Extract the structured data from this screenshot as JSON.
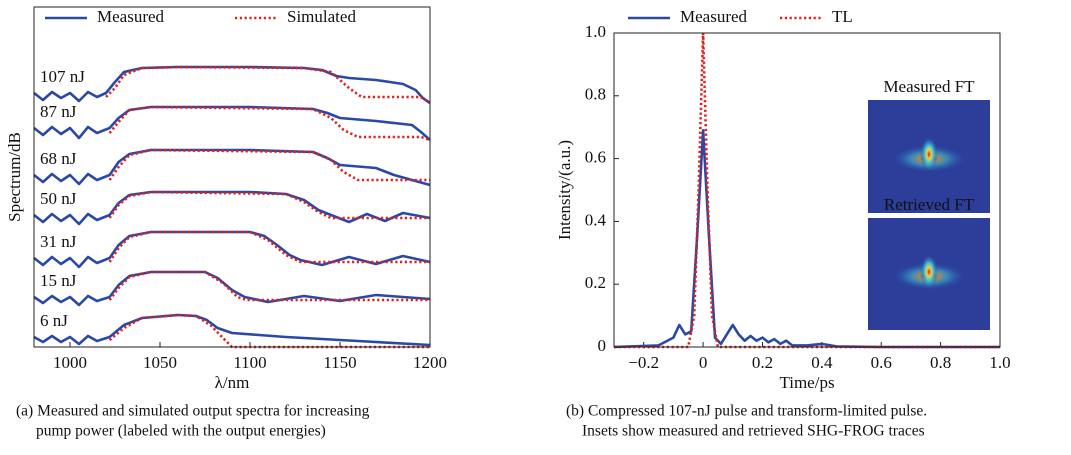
{
  "chart_data": [
    {
      "type": "waterfall",
      "ylabel": "Spectrum/dB",
      "xlabel": "λ/nm",
      "caption": [
        "(a) Measured and simulated output spectra for increasing",
        "pump power (labeled with the output energies)"
      ],
      "xlim": [
        980,
        1200
      ],
      "xticks": [
        1000,
        1050,
        1100,
        1150,
        1200
      ],
      "ylim": [
        0,
        340
      ],
      "series": [
        {
          "name": "Measured",
          "color": "#2a49a6",
          "style": "solid",
          "traces": [
            {
              "label": "107 nJ",
              "x": [
                980,
                985,
                990,
                995,
                1000,
                1005,
                1010,
                1015,
                1020,
                1025,
                1030,
                1040,
                1060,
                1100,
                1130,
                1140,
                1148,
                1155,
                1170,
                1185,
                1192,
                1196,
                1200
              ],
              "values": [
                254,
                247,
                255,
                249,
                254,
                246,
                255,
                250,
                254,
                265,
                275,
                279,
                280,
                280,
                279,
                277,
                271,
                269,
                267,
                263,
                257,
                249,
                244
              ]
            },
            {
              "label": "87 nJ",
              "x": [
                980,
                985,
                990,
                995,
                1000,
                1005,
                1010,
                1015,
                1022,
                1027,
                1033,
                1045,
                1100,
                1135,
                1143,
                1150,
                1170,
                1190,
                1195,
                1200
              ],
              "values": [
                219,
                212,
                220,
                213,
                219,
                209,
                220,
                214,
                219,
                229,
                237,
                240,
                240,
                238,
                234,
                229,
                226,
                222,
                215,
                207
              ]
            },
            {
              "label": "68 nJ",
              "x": [
                980,
                985,
                990,
                995,
                1000,
                1005,
                1010,
                1015,
                1022,
                1027,
                1033,
                1045,
                1100,
                1135,
                1143,
                1150,
                1170,
                1180,
                1190,
                1200
              ],
              "values": [
                172,
                165,
                173,
                166,
                172,
                163,
                173,
                167,
                172,
                185,
                193,
                197,
                197,
                195,
                189,
                182,
                179,
                172,
                167,
                162
              ]
            },
            {
              "label": "50 nJ",
              "x": [
                980,
                985,
                990,
                995,
                1000,
                1005,
                1010,
                1015,
                1022,
                1027,
                1033,
                1045,
                1100,
                1120,
                1130,
                1138,
                1145,
                1155,
                1165,
                1175,
                1185,
                1200
              ],
              "values": [
                132,
                125,
                133,
                126,
                132,
                123,
                133,
                127,
                132,
                144,
                152,
                155,
                155,
                153,
                147,
                137,
                132,
                125,
                133,
                126,
                134,
                129
              ]
            },
            {
              "label": "31 nJ",
              "x": [
                980,
                985,
                990,
                995,
                1000,
                1005,
                1010,
                1015,
                1022,
                1027,
                1033,
                1045,
                1100,
                1108,
                1115,
                1122,
                1128,
                1140,
                1155,
                1170,
                1185,
                1200
              ],
              "values": [
                89,
                82,
                90,
                83,
                89,
                80,
                90,
                84,
                89,
                102,
                111,
                115,
                115,
                111,
                102,
                92,
                87,
                82,
                90,
                83,
                91,
                85
              ]
            },
            {
              "label": "15 nJ",
              "x": [
                980,
                985,
                990,
                995,
                1000,
                1005,
                1010,
                1015,
                1022,
                1027,
                1033,
                1045,
                1075,
                1082,
                1090,
                1097,
                1110,
                1130,
                1150,
                1170,
                1200
              ],
              "values": [
                50,
                44,
                51,
                45,
                50,
                42,
                51,
                46,
                50,
                62,
                71,
                75,
                75,
                69,
                57,
                50,
                45,
                51,
                46,
                52,
                48
              ]
            },
            {
              "label": "6 nJ",
              "x": [
                980,
                985,
                990,
                995,
                1000,
                1005,
                1010,
                1015,
                1022,
                1030,
                1040,
                1060,
                1070,
                1076,
                1082,
                1090,
                1120,
                1160,
                1200
              ],
              "values": [
                10,
                5,
                11,
                5,
                10,
                3,
                11,
                6,
                10,
                22,
                29,
                32,
                31,
                27,
                19,
                14,
                10,
                6,
                2
              ]
            }
          ]
        },
        {
          "name": "Simulated",
          "color": "#e0201b",
          "style": "dotted",
          "traces": [
            {
              "x": [
                1020,
                1025,
                1030,
                1040,
                1060,
                1130,
                1145,
                1155,
                1162,
                1195,
                1200
              ],
              "values": [
                250,
                259,
                272,
                279,
                280,
                279,
                275,
                259,
                250,
                250,
                244
              ]
            },
            {
              "x": [
                1022,
                1027,
                1033,
                1045,
                1135,
                1145,
                1152,
                1160,
                1195,
                1200
              ],
              "values": [
                214,
                225,
                237,
                240,
                238,
                229,
                217,
                210,
                210,
                207
              ]
            },
            {
              "x": [
                1022,
                1027,
                1033,
                1045,
                1135,
                1145,
                1152,
                1160,
                1200
              ],
              "values": [
                167,
                180,
                192,
                197,
                195,
                187,
                175,
                167,
                167
              ]
            },
            {
              "x": [
                1022,
                1027,
                1033,
                1045,
                1120,
                1130,
                1138,
                1145,
                1200
              ],
              "values": [
                129,
                142,
                151,
                155,
                153,
                145,
                135,
                129,
                129
              ]
            },
            {
              "x": [
                1022,
                1027,
                1033,
                1045,
                1100,
                1110,
                1120,
                1128,
                1200
              ],
              "values": [
                85,
                99,
                110,
                115,
                115,
                107,
                92,
                85,
                85
              ]
            },
            {
              "x": [
                1022,
                1027,
                1033,
                1045,
                1075,
                1085,
                1093,
                1098,
                1200
              ],
              "values": [
                47,
                59,
                70,
                75,
                75,
                64,
                50,
                47,
                47
              ]
            },
            {
              "x": [
                1022,
                1030,
                1040,
                1060,
                1070,
                1078,
                1085,
                1090,
                1200
              ],
              "values": [
                7,
                19,
                29,
                32,
                31,
                22,
                9,
                0,
                0
              ]
            }
          ]
        }
      ]
    },
    {
      "type": "line",
      "ylabel": "Intensity/(a.u.)",
      "xlabel": "Time/ps",
      "caption": [
        "(b) Compressed 107-nJ pulse and transform-limited pulse.",
        "Insets show measured and retrieved SHG-FROG traces"
      ],
      "xlim": [
        -0.3,
        1.0
      ],
      "xticks": [
        {
          "value": -0.2,
          "label": "−0.2"
        },
        0,
        0.2,
        0.4,
        0.6,
        0.8,
        {
          "value": 1.0,
          "label": "1.0"
        }
      ],
      "ylim": [
        0,
        1.0
      ],
      "yticks": [
        0,
        0.2,
        0.4,
        0.6,
        0.8,
        {
          "value": 1.0,
          "label": "1.0"
        }
      ],
      "insets": [
        {
          "title": "Measured FT"
        },
        {
          "title": "Retrieved FT"
        }
      ],
      "series": [
        {
          "name": "Measured",
          "color": "#2a49a6",
          "style": "solid",
          "x": [
            -0.3,
            -0.15,
            -0.1,
            -0.08,
            -0.06,
            -0.04,
            -0.02,
            0,
            0.02,
            0.04,
            0.06,
            0.08,
            0.1,
            0.12,
            0.14,
            0.16,
            0.18,
            0.2,
            0.22,
            0.24,
            0.26,
            0.28,
            0.3,
            0.35,
            0.4,
            0.45,
            0.6,
            1.0
          ],
          "values": [
            0,
            0.005,
            0.03,
            0.07,
            0.04,
            0.05,
            0.35,
            0.69,
            0.35,
            0.03,
            0.01,
            0.04,
            0.07,
            0.04,
            0.02,
            0.035,
            0.02,
            0.03,
            0.015,
            0.025,
            0.01,
            0.02,
            0.005,
            0.005,
            0.01,
            0.002,
            0,
            0
          ]
        },
        {
          "name": "TL",
          "color": "#e0201b",
          "style": "dotted",
          "x": [
            -0.3,
            -0.05,
            -0.03,
            -0.015,
            0,
            0.015,
            0.03,
            0.05,
            1.0
          ],
          "values": [
            0,
            0,
            0.1,
            0.5,
            1.0,
            0.5,
            0.1,
            0,
            0
          ]
        }
      ]
    }
  ]
}
